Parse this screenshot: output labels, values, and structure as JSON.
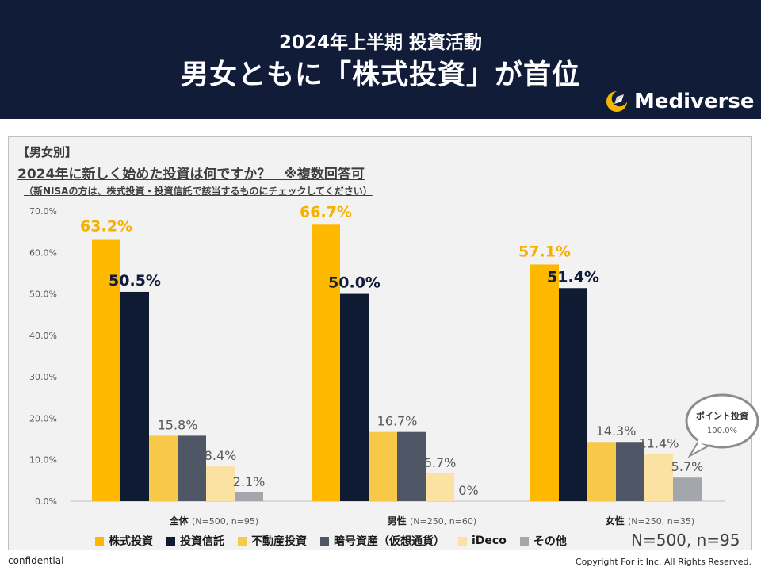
{
  "header": {
    "subtitle": "2024年上半期 投資活動",
    "title": "男女ともに「株式投資」が首位",
    "logo_text": "Mediverse",
    "logo_icon": "crescent-rocket-icon"
  },
  "question": {
    "tag": "【男女別】",
    "text": "2024年に新しく始めた投資は何ですか？　※複数回答可",
    "note": "（新NISAの方は、株式投資・投資信託で該当するものにチェックしてください）"
  },
  "chart_data": {
    "type": "bar",
    "title": "2024年に新しく始めた投資は何ですか？　※複数回答可",
    "ylim": [
      0,
      70
    ],
    "yticks": [
      "0.0%",
      "10.0%",
      "20.0%",
      "30.0%",
      "40.0%",
      "50.0%",
      "60.0%",
      "70.0%"
    ],
    "grid": false,
    "legend_position": "bottom",
    "groups": [
      {
        "name": "全体",
        "sub": "(N=500, n=95)"
      },
      {
        "name": "男性",
        "sub": "(N=250, n=60)"
      },
      {
        "name": "女性",
        "sub": "(N=250, n=35)"
      }
    ],
    "series": [
      {
        "name": "株式投資",
        "color": "#ffb800",
        "values": [
          63.2,
          66.7,
          57.1
        ],
        "labels": [
          "63.2%",
          "66.7%",
          "57.1%"
        ]
      },
      {
        "name": "投資信託",
        "color": "#0f1a33",
        "values": [
          50.5,
          50.0,
          51.4
        ],
        "labels": [
          "50.5%",
          "50.0%",
          "51.4%"
        ]
      },
      {
        "name": "不動産投資",
        "color": "#f8c848",
        "values": [
          15.8,
          16.7,
          14.3
        ],
        "labels": [
          "15.8%",
          "16.7%",
          "14.3%"
        ]
      },
      {
        "name": "暗号資産（仮想通貨）",
        "color": "#4f5666",
        "values": [
          15.8,
          16.7,
          14.3
        ],
        "labels": [
          "",
          "",
          ""
        ]
      },
      {
        "name": "iDeco",
        "color": "#fbe2a3",
        "values": [
          8.4,
          6.7,
          11.4
        ],
        "labels": [
          "8.4%",
          "6.7%",
          "11.4%"
        ]
      },
      {
        "name": "その他",
        "color": "#a3a6ad",
        "values": [
          2.1,
          0,
          5.7
        ],
        "labels": [
          "2.1%",
          "0%",
          "5.7%"
        ]
      }
    ],
    "callout": {
      "title": "ポイント投資",
      "value": "100.0%"
    }
  },
  "footer": {
    "sample_note": "N=500, n=95",
    "confidential": "confidential",
    "copyright": "Copyright For it Inc. All Rights Reserved."
  }
}
